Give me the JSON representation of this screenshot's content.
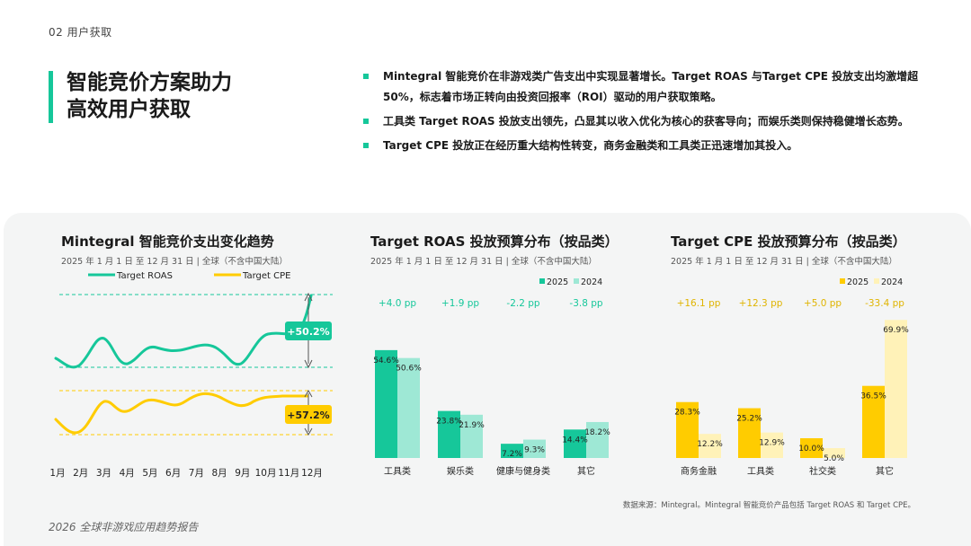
{
  "section": "02   用户获取",
  "headline": [
    "智能竞价方案助力",
    "高效用户获取"
  ],
  "bullets": [
    "Mintegral 智能竞价在非游戏类广告支出中实现显著增长。Target ROAS 与Target CPE 投放支出均激增超 50%，标志着市场正转向由投资回报率（ROI）驱动的用户获取策略。",
    "工具类 Target ROAS 投放支出领先，凸显其以收入优化为核心的获客导向；而娱乐类则保持稳健增长态势。",
    "Target CPE 投放正在经历重大结构性转变，商务金融类和工具类正迅速增加其投入。"
  ],
  "colors": {
    "roas": "#16c79a",
    "roas_light": "#9ee8d5",
    "cpe": "#ffcc00",
    "cpe_light": "#fff2b8",
    "accent": "#16c79a"
  },
  "chart_data": [
    {
      "type": "line",
      "title": "Mintegral 智能竞价支出变化趋势",
      "subtitle": "2025 年 1 月 1 日 至 12 月 31 日 | 全球（不含中国大陆）",
      "x": [
        "1月",
        "2月",
        "3月",
        "4月",
        "5月",
        "6月",
        "7月",
        "8月",
        "9月",
        "10月",
        "11月",
        "12月"
      ],
      "series": [
        {
          "name": "Target ROAS",
          "annotation": "+50.2%"
        },
        {
          "name": "Target CPE",
          "annotation": "+57.2%"
        }
      ],
      "grid": false,
      "y_axis": "none",
      "legend": "top"
    },
    {
      "type": "bar",
      "title": "Target ROAS 投放预算分布（按品类）",
      "subtitle": "2025 年 1 月 1 日 至 12 月 31 日 | 全球（不含中国大陆）",
      "categories": [
        "工具类",
        "娱乐类",
        "健康与健身类",
        "其它"
      ],
      "series": [
        {
          "name": "2025",
          "values": [
            54.6,
            23.8,
            7.2,
            14.4
          ],
          "labels": [
            "54.6%",
            "23.8%",
            "7.2%",
            "14.4%"
          ]
        },
        {
          "name": "2024",
          "values": [
            50.6,
            21.9,
            9.3,
            18.2
          ],
          "labels": [
            "50.6%",
            "21.9%",
            "9.3%",
            "18.2%"
          ]
        }
      ],
      "changes": [
        "+4.0 pp",
        "+1.9 pp",
        "-2.2 pp",
        "-3.8 pp"
      ],
      "legend": "top-right"
    },
    {
      "type": "bar",
      "title": "Target CPE 投放预算分布（按品类）",
      "subtitle": "2025 年 1 月 1 日 至 12 月 31 日 | 全球（不含中国大陆）",
      "categories": [
        "商务金融",
        "工具类",
        "社交类",
        "其它"
      ],
      "series": [
        {
          "name": "2025",
          "values": [
            28.3,
            25.2,
            10.0,
            36.5
          ],
          "labels": [
            "28.3%",
            "25.2%",
            "10.0%",
            "36.5%"
          ]
        },
        {
          "name": "2024",
          "values": [
            12.2,
            12.9,
            5.0,
            69.9
          ],
          "labels": [
            "12.2%",
            "12.9%",
            "5.0%",
            "69.9%"
          ]
        }
      ],
      "changes": [
        "+16.1 pp",
        "+12.3 pp",
        "+5.0 pp",
        "-33.4 pp"
      ],
      "legend": "top-right"
    }
  ],
  "source": "数据来源：Mintegral。Mintegral 智能竞价产品包括 Target ROAS 和 Target CPE。",
  "report": "2026 全球非游戏应用趋势报告"
}
